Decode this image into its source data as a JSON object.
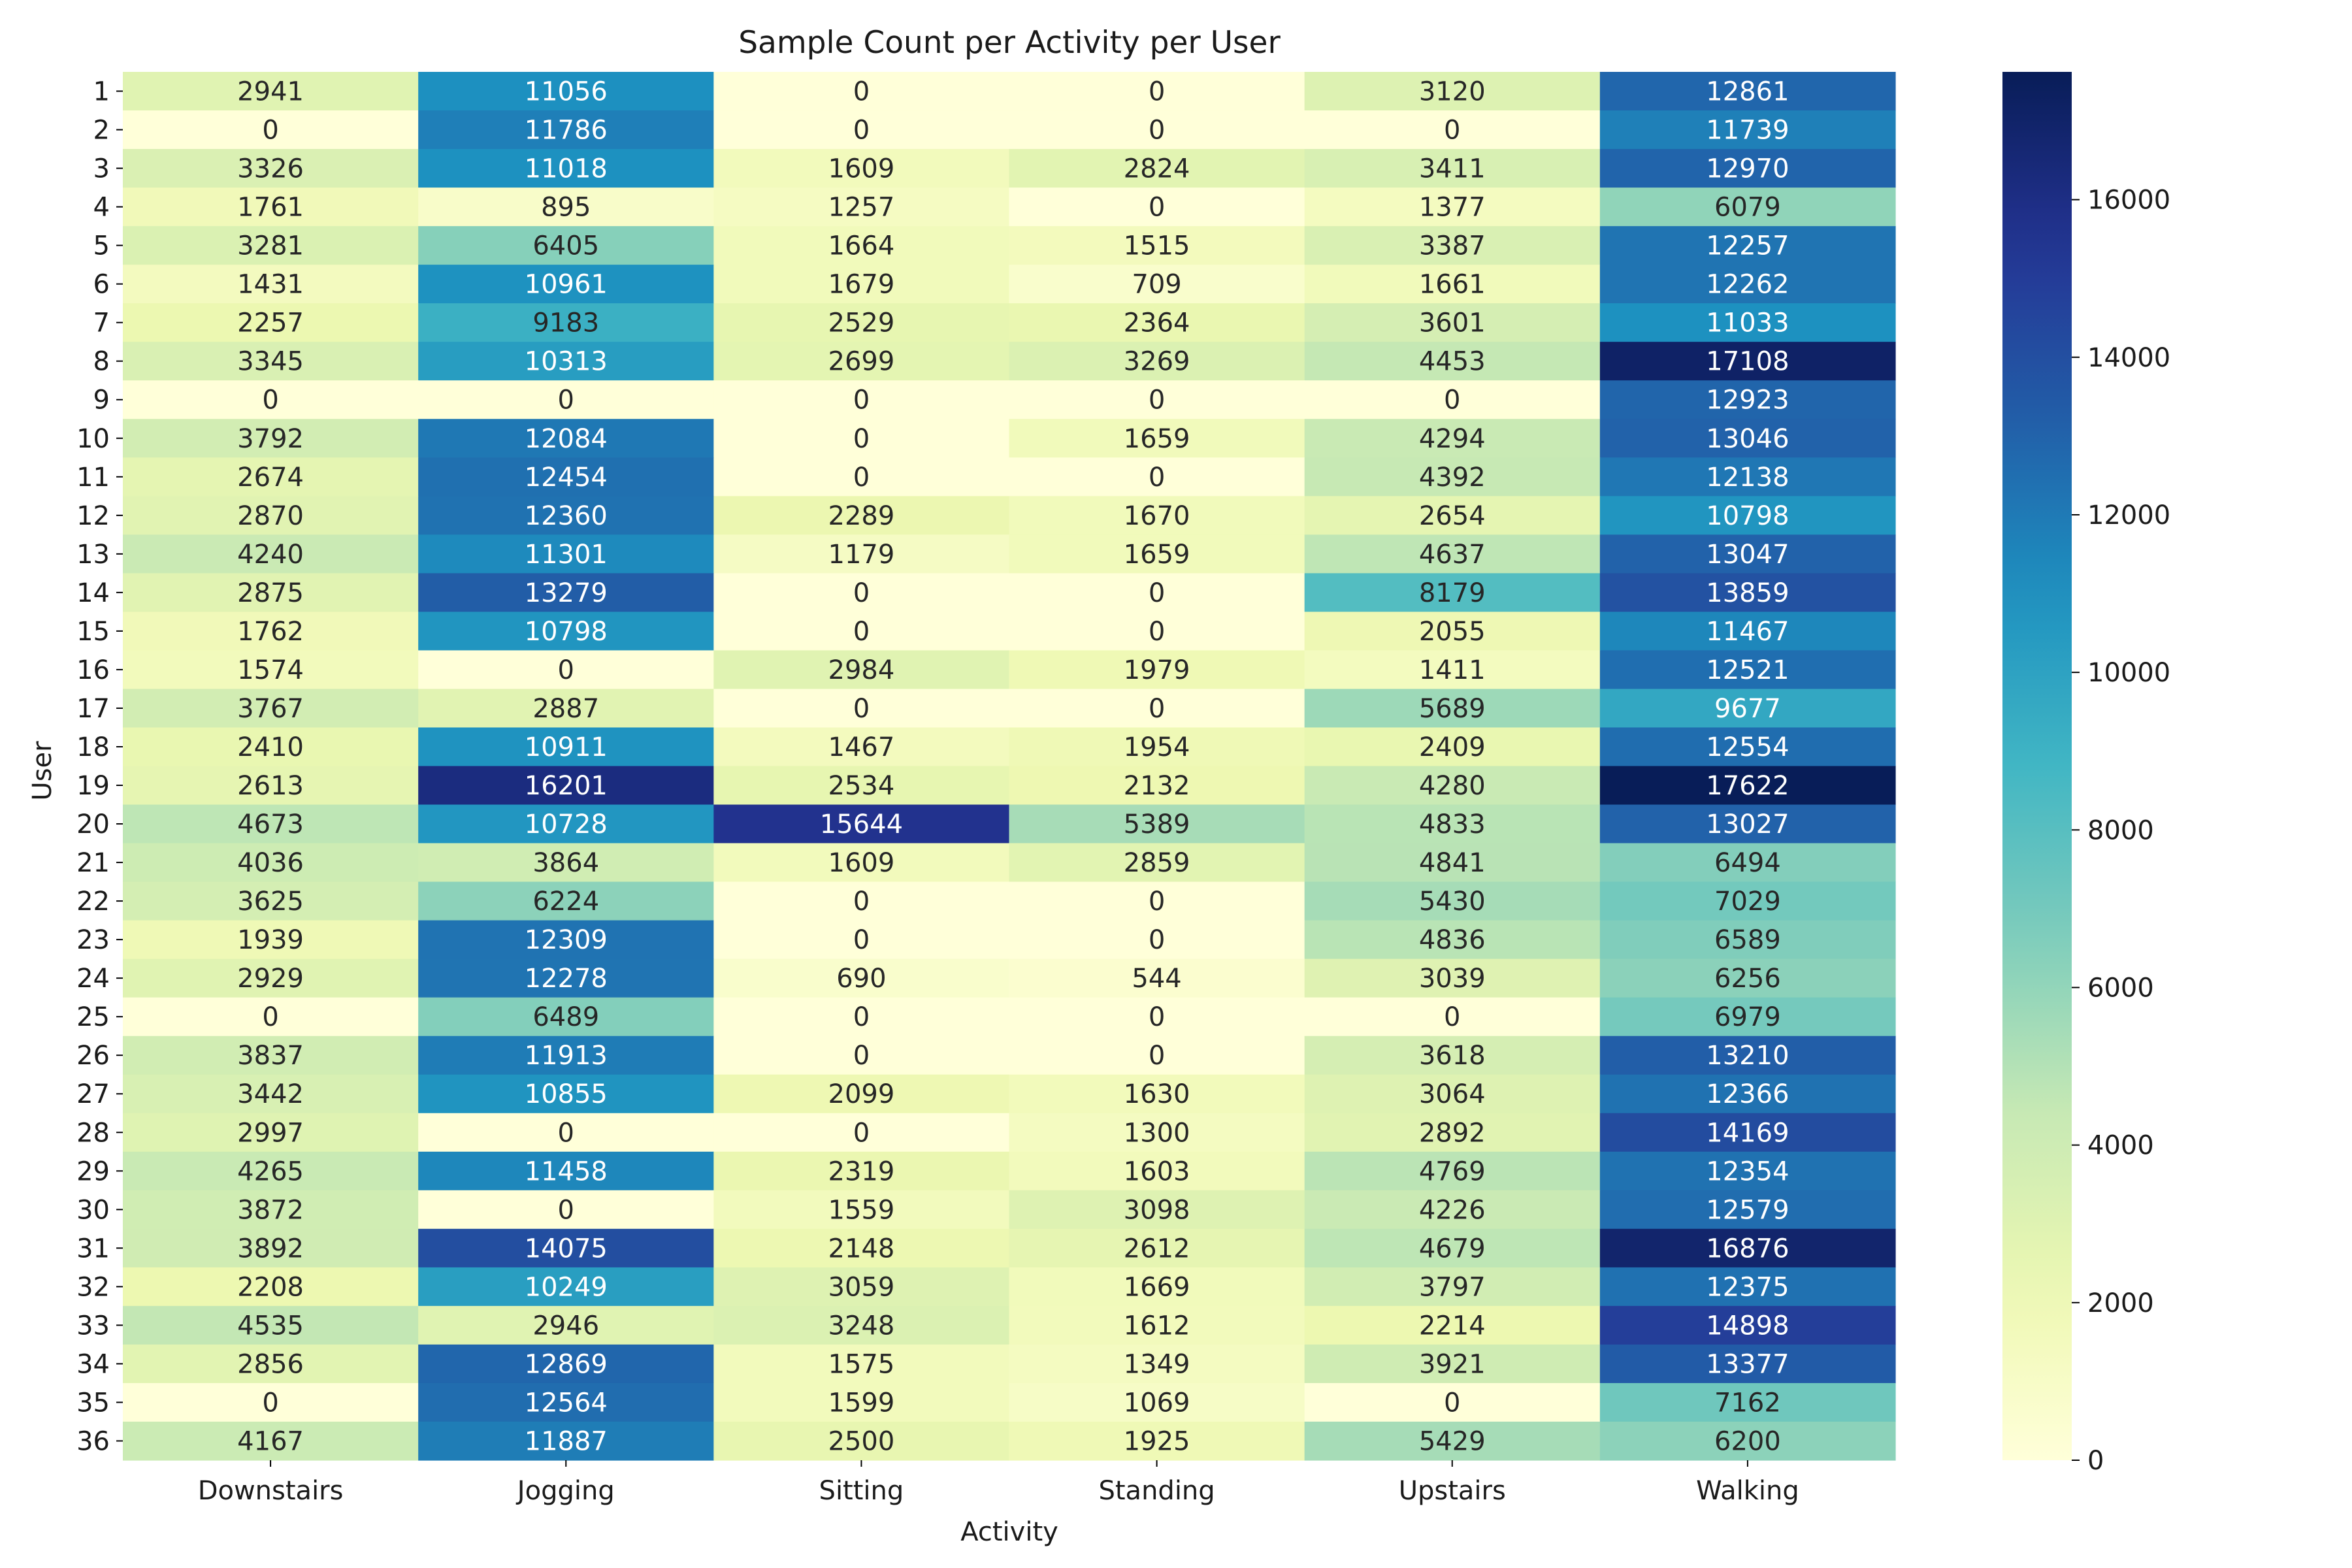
{
  "chart_data": {
    "type": "heatmap",
    "title": "Sample Count per Activity per User",
    "xlabel": "Activity",
    "ylabel": "User",
    "colormap": "YlGnBu",
    "colorbar": {
      "range": [
        0,
        17622
      ],
      "ticks": [
        0,
        2000,
        4000,
        6000,
        8000,
        10000,
        12000,
        14000,
        16000
      ]
    },
    "x_categories": [
      "Downstairs",
      "Jogging",
      "Sitting",
      "Standing",
      "Upstairs",
      "Walking"
    ],
    "y_categories": [
      "1",
      "2",
      "3",
      "4",
      "5",
      "6",
      "7",
      "8",
      "9",
      "10",
      "11",
      "12",
      "13",
      "14",
      "15",
      "16",
      "17",
      "18",
      "19",
      "20",
      "21",
      "22",
      "23",
      "24",
      "25",
      "26",
      "27",
      "28",
      "29",
      "30",
      "31",
      "32",
      "33",
      "34",
      "35",
      "36"
    ],
    "values": [
      [
        2941,
        11056,
        0,
        0,
        3120,
        12861
      ],
      [
        0,
        11786,
        0,
        0,
        0,
        11739
      ],
      [
        3326,
        11018,
        1609,
        2824,
        3411,
        12970
      ],
      [
        1761,
        895,
        1257,
        0,
        1377,
        6079
      ],
      [
        3281,
        6405,
        1664,
        1515,
        3387,
        12257
      ],
      [
        1431,
        10961,
        1679,
        709,
        1661,
        12262
      ],
      [
        2257,
        9183,
        2529,
        2364,
        3601,
        11033
      ],
      [
        3345,
        10313,
        2699,
        3269,
        4453,
        17108
      ],
      [
        0,
        0,
        0,
        0,
        0,
        12923
      ],
      [
        3792,
        12084,
        0,
        1659,
        4294,
        13046
      ],
      [
        2674,
        12454,
        0,
        0,
        4392,
        12138
      ],
      [
        2870,
        12360,
        2289,
        1670,
        2654,
        10798
      ],
      [
        4240,
        11301,
        1179,
        1659,
        4637,
        13047
      ],
      [
        2875,
        13279,
        0,
        0,
        8179,
        13859
      ],
      [
        1762,
        10798,
        0,
        0,
        2055,
        11467
      ],
      [
        1574,
        0,
        2984,
        1979,
        1411,
        12521
      ],
      [
        3767,
        2887,
        0,
        0,
        5689,
        9677
      ],
      [
        2410,
        10911,
        1467,
        1954,
        2409,
        12554
      ],
      [
        2613,
        16201,
        2534,
        2132,
        4280,
        17622
      ],
      [
        4673,
        10728,
        15644,
        5389,
        4833,
        13027
      ],
      [
        4036,
        3864,
        1609,
        2859,
        4841,
        6494
      ],
      [
        3625,
        6224,
        0,
        0,
        5430,
        7029
      ],
      [
        1939,
        12309,
        0,
        0,
        4836,
        6589
      ],
      [
        2929,
        12278,
        690,
        544,
        3039,
        6256
      ],
      [
        0,
        6489,
        0,
        0,
        0,
        6979
      ],
      [
        3837,
        11913,
        0,
        0,
        3618,
        13210
      ],
      [
        3442,
        10855,
        2099,
        1630,
        3064,
        12366
      ],
      [
        2997,
        0,
        0,
        1300,
        2892,
        14169
      ],
      [
        4265,
        11458,
        2319,
        1603,
        4769,
        12354
      ],
      [
        3872,
        0,
        1559,
        3098,
        4226,
        12579
      ],
      [
        3892,
        14075,
        2148,
        2612,
        4679,
        16876
      ],
      [
        2208,
        10249,
        3059,
        1669,
        3797,
        12375
      ],
      [
        4535,
        2946,
        3248,
        1612,
        2214,
        14898
      ],
      [
        2856,
        12869,
        1575,
        1349,
        3921,
        13377
      ],
      [
        0,
        12564,
        1599,
        1069,
        0,
        7162
      ],
      [
        4167,
        11887,
        2500,
        1925,
        5429,
        6200
      ]
    ]
  }
}
